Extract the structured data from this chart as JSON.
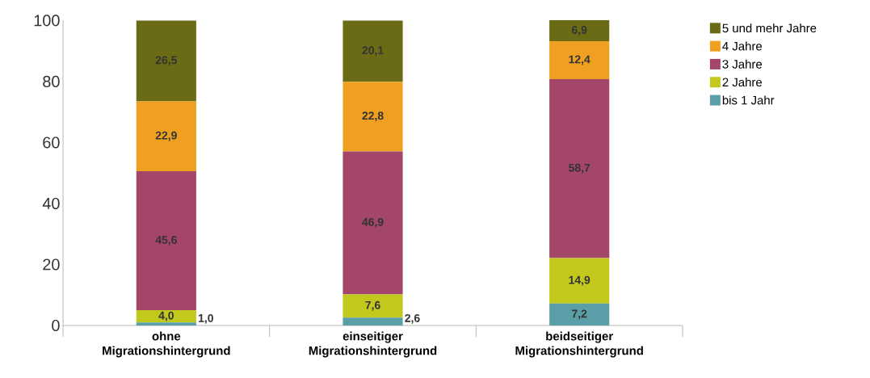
{
  "chart_data": {
    "type": "bar",
    "stacked": true,
    "categories": [
      "ohne Migrationshintergrund",
      "einseitiger Migrationshintergrund",
      "beidseitiger Migrationshintergrund"
    ],
    "series": [
      {
        "name": "bis 1 Jahr",
        "color": "#5a9ea8",
        "values": [
          1.0,
          2.6,
          7.2
        ],
        "value_labels": [
          "1,0",
          "2,6",
          "7,2"
        ]
      },
      {
        "name": "2 Jahre",
        "color": "#c3c81c",
        "values": [
          4.0,
          7.6,
          14.9
        ],
        "value_labels": [
          "4,0",
          "7,6",
          "14,9"
        ]
      },
      {
        "name": "3 Jahre",
        "color": "#a4466a",
        "values": [
          45.6,
          46.9,
          58.7
        ],
        "value_labels": [
          "45,6",
          "46,9",
          "58,7"
        ]
      },
      {
        "name": "4 Jahre",
        "color": "#f0a020",
        "values": [
          22.9,
          22.8,
          12.4
        ],
        "value_labels": [
          "22,9",
          "22,8",
          "12,4"
        ]
      },
      {
        "name": "5 und mehr Jahre",
        "color": "#6b6b16",
        "values": [
          26.5,
          20.1,
          6.9
        ],
        "value_labels": [
          "26,5",
          "20,1",
          "6,9"
        ]
      }
    ],
    "ylim": [
      0,
      100.1
    ],
    "yticks": [
      0,
      20,
      40,
      60,
      80,
      100
    ],
    "legend": "top right"
  }
}
